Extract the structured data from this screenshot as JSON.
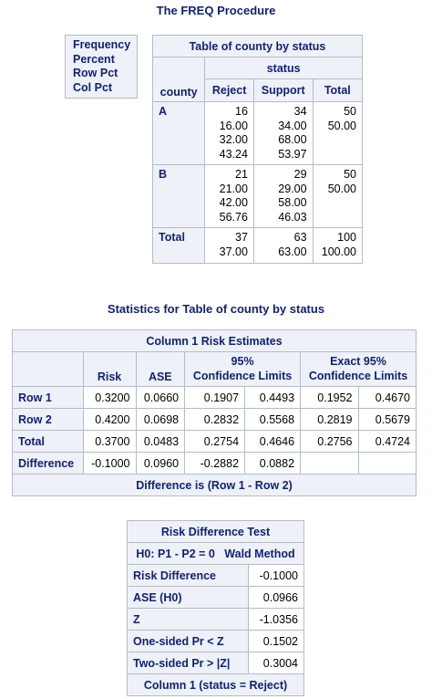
{
  "page_title": "The FREQ Procedure",
  "key_labels": [
    "Frequency",
    "Percent",
    "Row Pct",
    "Col Pct"
  ],
  "freq_table": {
    "title": "Table of county by status",
    "col_var": "status",
    "row_var": "county",
    "columns": [
      "Reject",
      "Support",
      "Total"
    ],
    "rows": [
      {
        "label": "A",
        "reject": [
          "16",
          "16.00",
          "32.00",
          "43.24"
        ],
        "support": [
          "34",
          "34.00",
          "68.00",
          "53.97"
        ],
        "total": [
          "50",
          "50.00"
        ]
      },
      {
        "label": "B",
        "reject": [
          "21",
          "21.00",
          "42.00",
          "56.76"
        ],
        "support": [
          "29",
          "29.00",
          "58.00",
          "46.03"
        ],
        "total": [
          "50",
          "50.00"
        ]
      },
      {
        "label": "Total",
        "reject": [
          "37",
          "37.00"
        ],
        "support": [
          "63",
          "63.00"
        ],
        "total": [
          "100",
          "100.00"
        ]
      }
    ]
  },
  "stats_title": "Statistics for Table of county by status",
  "risk_table": {
    "title": "Column 1 Risk Estimates",
    "headers": {
      "risk": "Risk",
      "ase": "ASE",
      "cl_top": "95%",
      "cl_bottom": "Confidence Limits",
      "exact_top": "Exact 95%",
      "exact_bottom": "Confidence Limits"
    },
    "rows": [
      {
        "label": "Row 1",
        "risk": "0.3200",
        "ase": "0.0660",
        "lcl": "0.1907",
        "ucl": "0.4493",
        "elcl": "0.1952",
        "eucl": "0.4670"
      },
      {
        "label": "Row 2",
        "risk": "0.4200",
        "ase": "0.0698",
        "lcl": "0.2832",
        "ucl": "0.5568",
        "elcl": "0.2819",
        "eucl": "0.5679"
      },
      {
        "label": "Total",
        "risk": "0.3700",
        "ase": "0.0483",
        "lcl": "0.2754",
        "ucl": "0.4646",
        "elcl": "0.2756",
        "eucl": "0.4724"
      },
      {
        "label": "Difference",
        "risk": "-0.1000",
        "ase": "0.0960",
        "lcl": "-0.2882",
        "ucl": "0.0882",
        "elcl": "",
        "eucl": ""
      }
    ],
    "footer": "Difference is (Row 1 - Row 2)"
  },
  "diff_test": {
    "title": "Risk Difference Test",
    "subtitle_left": "H0: P1 - P2 = 0",
    "subtitle_right": "Wald Method",
    "rows": [
      {
        "label": "Risk Difference",
        "value": "-0.1000"
      },
      {
        "label": "ASE (H0)",
        "value": "0.0966"
      },
      {
        "label": "Z",
        "value": "-1.0356"
      },
      {
        "label": "One-sided Pr < Z",
        "value": "0.1502"
      },
      {
        "label": "Two-sided Pr > |Z|",
        "value": "0.3004"
      }
    ],
    "footer": "Column 1 (status = Reject)"
  }
}
